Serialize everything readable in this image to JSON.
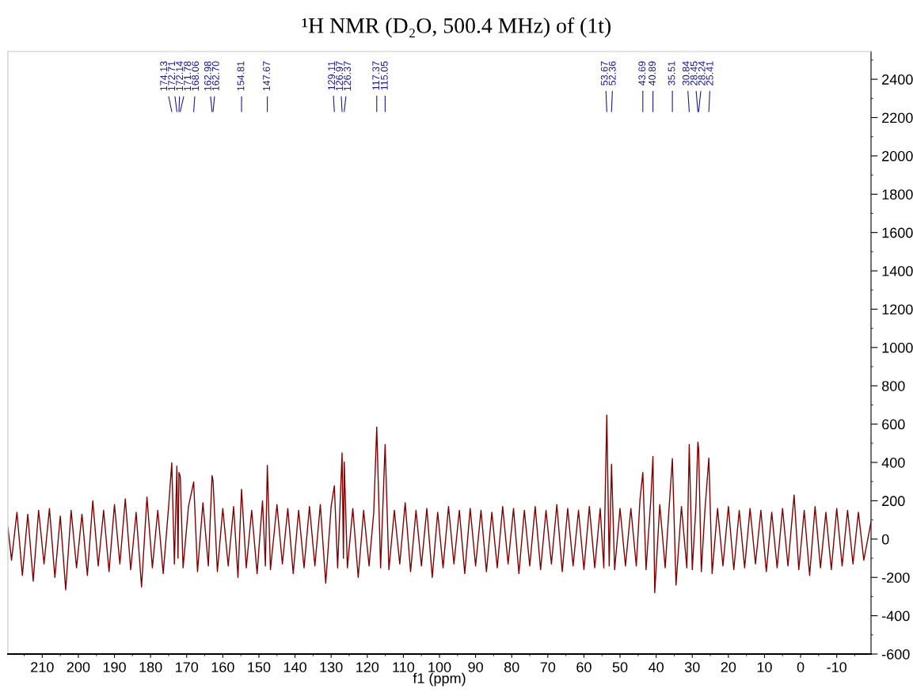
{
  "chart_data": {
    "type": "line",
    "title": "¹H NMR (D₂O, 500.4 MHz) of (1t)",
    "xlabel": "f1 (ppm)",
    "x": [
      219.5,
      218.5,
      217,
      215.5,
      214,
      212.5,
      211,
      209.5,
      208,
      206.5,
      205,
      203.5,
      202,
      200.5,
      199,
      197.5,
      196,
      194.5,
      193,
      191.5,
      190,
      188.5,
      187,
      185.5,
      184,
      182.5,
      181,
      179.5,
      178,
      176.5,
      175,
      174.13,
      173.4,
      172.71,
      172.4,
      172.14,
      171.78,
      171,
      169.5,
      168.06,
      167,
      165.5,
      164,
      162.98,
      162.7,
      161.5,
      160,
      158.5,
      157,
      155.8,
      154.81,
      153.5,
      152,
      150.5,
      149,
      148.2,
      147.67,
      146.8,
      145,
      143.5,
      142,
      140.5,
      139,
      137.5,
      136,
      134.5,
      133,
      131.5,
      130,
      129.11,
      128.2,
      126.97,
      126.6,
      126.37,
      125.5,
      124,
      122.5,
      121,
      119.5,
      118.2,
      117.37,
      116.3,
      115.05,
      114,
      112.5,
      111,
      109.5,
      108,
      106.5,
      105,
      103.5,
      102,
      100.5,
      99,
      97.5,
      96,
      94.5,
      93,
      91.5,
      90,
      88.5,
      87,
      85.5,
      84,
      82.5,
      81,
      79.5,
      78,
      76.5,
      75,
      73.5,
      72,
      70.5,
      69,
      67.5,
      66,
      64.5,
      63,
      61.5,
      60,
      58.5,
      57,
      55.5,
      54.5,
      53.67,
      53,
      52.36,
      51.5,
      50,
      48.5,
      47,
      45.5,
      44.5,
      43.69,
      42.8,
      41.5,
      40.89,
      40.4,
      39,
      37.5,
      36.5,
      35.51,
      34.5,
      33,
      31.5,
      30.84,
      30,
      29,
      28.45,
      28.24,
      27.5,
      26.5,
      25.41,
      24.5,
      23,
      21.5,
      20,
      18.5,
      17,
      15.5,
      14,
      12.5,
      11,
      9.5,
      8,
      6.5,
      5,
      3.5,
      1.8,
      0.5,
      -1,
      -2.5,
      -4,
      -5.5,
      -7,
      -8.5,
      -10,
      -11.5,
      -13,
      -14.5,
      -16,
      -17.5,
      -19.5
    ],
    "series": [
      {
        "color": "#800000",
        "values": [
          60,
          -110,
          140,
          -190,
          130,
          -220,
          150,
          -130,
          160,
          -200,
          120,
          -265,
          150,
          -150,
          130,
          -190,
          200,
          -140,
          150,
          -170,
          180,
          -130,
          210,
          -160,
          140,
          -250,
          220,
          -150,
          150,
          -180,
          170,
          398,
          -130,
          381,
          -100,
          348,
          327,
          -150,
          170,
          298,
          -170,
          190,
          -140,
          331,
          302,
          -170,
          160,
          -140,
          170,
          -200,
          260,
          -150,
          150,
          -180,
          200,
          -140,
          385,
          -160,
          180,
          -130,
          160,
          -180,
          150,
          -150,
          170,
          -140,
          180,
          -230,
          170,
          278,
          -150,
          450,
          -100,
          402,
          -150,
          160,
          -200,
          150,
          -140,
          140,
          584,
          -150,
          493,
          -160,
          150,
          -130,
          190,
          -170,
          150,
          -140,
          160,
          -200,
          140,
          -150,
          170,
          -130,
          150,
          -180,
          160,
          -140,
          150,
          -170,
          140,
          -150,
          170,
          -130,
          160,
          -180,
          150,
          -140,
          170,
          -160,
          150,
          -130,
          180,
          -170,
          160,
          -140,
          150,
          -160,
          170,
          -150,
          160,
          -150,
          647,
          -140,
          390,
          -160,
          160,
          -140,
          160,
          -140,
          200,
          348,
          -160,
          200,
          431,
          -280,
          180,
          -150,
          140,
          420,
          -240,
          170,
          -150,
          493,
          -160,
          170,
          506,
          472,
          -170,
          150,
          423,
          -180,
          160,
          -140,
          170,
          -160,
          150,
          -150,
          160,
          -130,
          150,
          -170,
          140,
          -150,
          160,
          -140,
          230,
          -160,
          150,
          -190,
          170,
          -150,
          140,
          -160,
          160,
          -140,
          150,
          -130,
          140,
          -110,
          90
        ]
      }
    ],
    "xlim": [
      219.5,
      -19.5
    ],
    "ylim": [
      -600,
      2545
    ],
    "xticks": [
      210,
      200,
      190,
      180,
      170,
      160,
      150,
      140,
      130,
      120,
      110,
      100,
      90,
      80,
      70,
      60,
      50,
      40,
      30,
      20,
      10,
      0,
      -10
    ],
    "yticks": [
      -600,
      -400,
      -200,
      0,
      200,
      400,
      600,
      800,
      1000,
      1200,
      1400,
      1600,
      1800,
      2000,
      2200,
      2400
    ],
    "annotations": [
      {
        "text": "174.13",
        "x": 174.13
      },
      {
        "text": "172.71",
        "x": 172.71
      },
      {
        "text": "172.14",
        "x": 172.14
      },
      {
        "text": "171.78",
        "x": 171.78
      },
      {
        "text": "168.06",
        "x": 168.06
      },
      {
        "text": "162.98",
        "x": 162.98
      },
      {
        "text": "162.70",
        "x": 162.7
      },
      {
        "text": "154.81",
        "x": 154.81
      },
      {
        "text": "147.67",
        "x": 147.67
      },
      {
        "text": "129.11",
        "x": 129.11
      },
      {
        "text": "126.97",
        "x": 126.97
      },
      {
        "text": "126.37",
        "x": 126.37
      },
      {
        "text": "117.37",
        "x": 117.37
      },
      {
        "text": "115.05",
        "x": 115.05
      },
      {
        "text": "53.67",
        "x": 53.67
      },
      {
        "text": "52.36",
        "x": 52.36
      },
      {
        "text": "43.69",
        "x": 43.69
      },
      {
        "text": "40.89",
        "x": 40.89
      },
      {
        "text": "35.51",
        "x": 35.51
      },
      {
        "text": "30.84",
        "x": 30.84
      },
      {
        "text": "28.45",
        "x": 28.45
      },
      {
        "text": "28.24",
        "x": 28.24
      },
      {
        "text": "25.41",
        "x": 25.41
      }
    ]
  }
}
